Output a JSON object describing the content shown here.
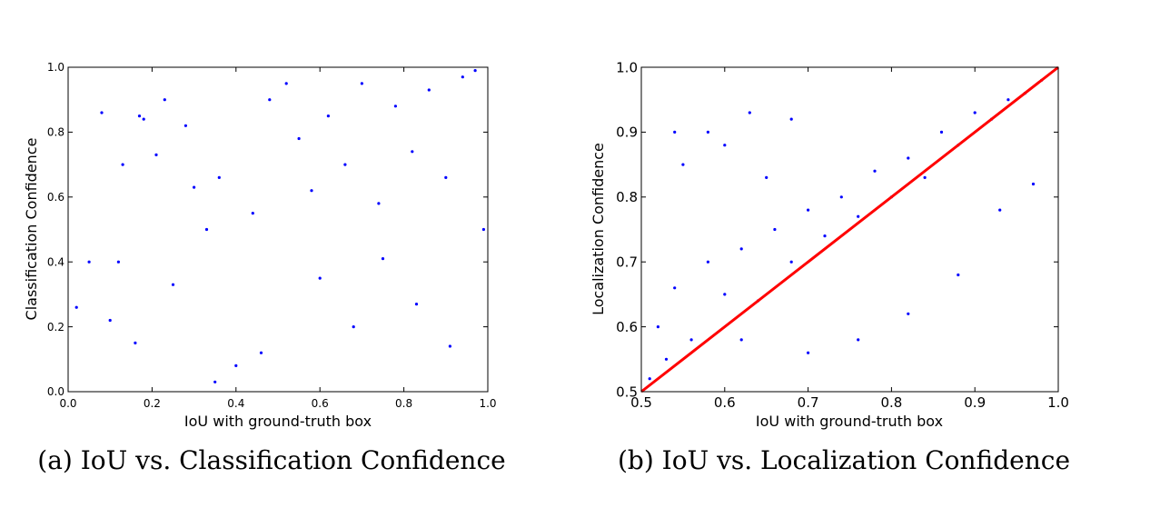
{
  "colors": {
    "points": "#0000ff",
    "diagonal": "#ff0000",
    "axes": "#000000"
  },
  "chart_data": [
    {
      "type": "scatter",
      "caption": "(a) IoU vs. Classification Confidence",
      "title": "",
      "xlabel": "IoU with ground-truth box",
      "ylabel": "Classification Confidence",
      "xlim": [
        0.0,
        1.0
      ],
      "ylim": [
        0.0,
        1.0
      ],
      "xticks": [
        "0.0",
        "0.2",
        "0.4",
        "0.6",
        "0.8",
        "1.0"
      ],
      "yticks": [
        "0.0",
        "0.2",
        "0.4",
        "0.6",
        "0.8",
        "1.0"
      ],
      "grid": false,
      "legend": "none",
      "series": [
        {
          "values": [
            [
              0.08,
              0.86
            ],
            [
              0.17,
              0.85
            ],
            [
              0.18,
              0.84
            ],
            [
              0.23,
              0.9
            ],
            [
              0.13,
              0.7
            ],
            [
              0.21,
              0.73
            ],
            [
              0.05,
              0.4
            ],
            [
              0.12,
              0.4
            ],
            [
              0.28,
              0.82
            ],
            [
              0.3,
              0.63
            ],
            [
              0.1,
              0.22
            ],
            [
              0.02,
              0.26
            ],
            [
              0.16,
              0.15
            ],
            [
              0.25,
              0.33
            ],
            [
              0.33,
              0.5
            ],
            [
              0.36,
              0.66
            ],
            [
              0.44,
              0.55
            ],
            [
              0.48,
              0.9
            ],
            [
              0.52,
              0.95
            ],
            [
              0.55,
              0.78
            ],
            [
              0.58,
              0.62
            ],
            [
              0.62,
              0.85
            ],
            [
              0.66,
              0.7
            ],
            [
              0.7,
              0.95
            ],
            [
              0.74,
              0.58
            ],
            [
              0.78,
              0.88
            ],
            [
              0.82,
              0.74
            ],
            [
              0.86,
              0.93
            ],
            [
              0.9,
              0.66
            ],
            [
              0.94,
              0.97
            ],
            [
              0.97,
              0.99
            ],
            [
              0.99,
              0.5
            ],
            [
              0.6,
              0.35
            ],
            [
              0.68,
              0.2
            ],
            [
              0.75,
              0.41
            ],
            [
              0.83,
              0.27
            ],
            [
              0.91,
              0.14
            ],
            [
              0.46,
              0.12
            ],
            [
              0.4,
              0.08
            ],
            [
              0.35,
              0.03
            ]
          ]
        }
      ]
    },
    {
      "type": "scatter",
      "caption": "(b) IoU vs. Localization Confidence",
      "title": "",
      "xlabel": "IoU with ground-truth box",
      "ylabel": "Localization Confidence",
      "xlim": [
        0.5,
        1.0
      ],
      "ylim": [
        0.5,
        1.0
      ],
      "xticks": [
        "0.5",
        "0.6",
        "0.7",
        "0.8",
        "0.9",
        "1.0"
      ],
      "yticks": [
        "0.5",
        "0.6",
        "0.7",
        "0.8",
        "0.9",
        "1.0"
      ],
      "grid": false,
      "legend": "none",
      "series": [
        {
          "values": [
            [
              0.52,
              0.6
            ],
            [
              0.54,
              0.66
            ],
            [
              0.56,
              0.58
            ],
            [
              0.58,
              0.7
            ],
            [
              0.6,
              0.65
            ],
            [
              0.62,
              0.72
            ],
            [
              0.64,
              0.64
            ],
            [
              0.66,
              0.75
            ],
            [
              0.68,
              0.7
            ],
            [
              0.7,
              0.78
            ],
            [
              0.72,
              0.74
            ],
            [
              0.74,
              0.8
            ],
            [
              0.76,
              0.77
            ],
            [
              0.78,
              0.84
            ],
            [
              0.8,
              0.8
            ],
            [
              0.82,
              0.86
            ],
            [
              0.84,
              0.83
            ],
            [
              0.86,
              0.9
            ],
            [
              0.88,
              0.88
            ],
            [
              0.9,
              0.93
            ],
            [
              0.92,
              0.92
            ],
            [
              0.94,
              0.95
            ],
            [
              0.96,
              0.96
            ],
            [
              0.98,
              0.98
            ],
            [
              0.55,
              0.85
            ],
            [
              0.6,
              0.88
            ],
            [
              0.65,
              0.83
            ],
            [
              0.7,
              0.56
            ],
            [
              0.76,
              0.58
            ],
            [
              0.82,
              0.62
            ],
            [
              0.88,
              0.68
            ],
            [
              0.93,
              0.78
            ],
            [
              0.97,
              0.82
            ],
            [
              0.54,
              0.9
            ],
            [
              0.58,
              0.9
            ],
            [
              0.63,
              0.93
            ],
            [
              0.68,
              0.92
            ],
            [
              0.51,
              0.52
            ],
            [
              0.53,
              0.55
            ],
            [
              0.62,
              0.58
            ]
          ]
        },
        {
          "type": "line",
          "x": [
            0.5,
            1.0
          ],
          "y": [
            0.5,
            1.0
          ]
        }
      ]
    }
  ]
}
